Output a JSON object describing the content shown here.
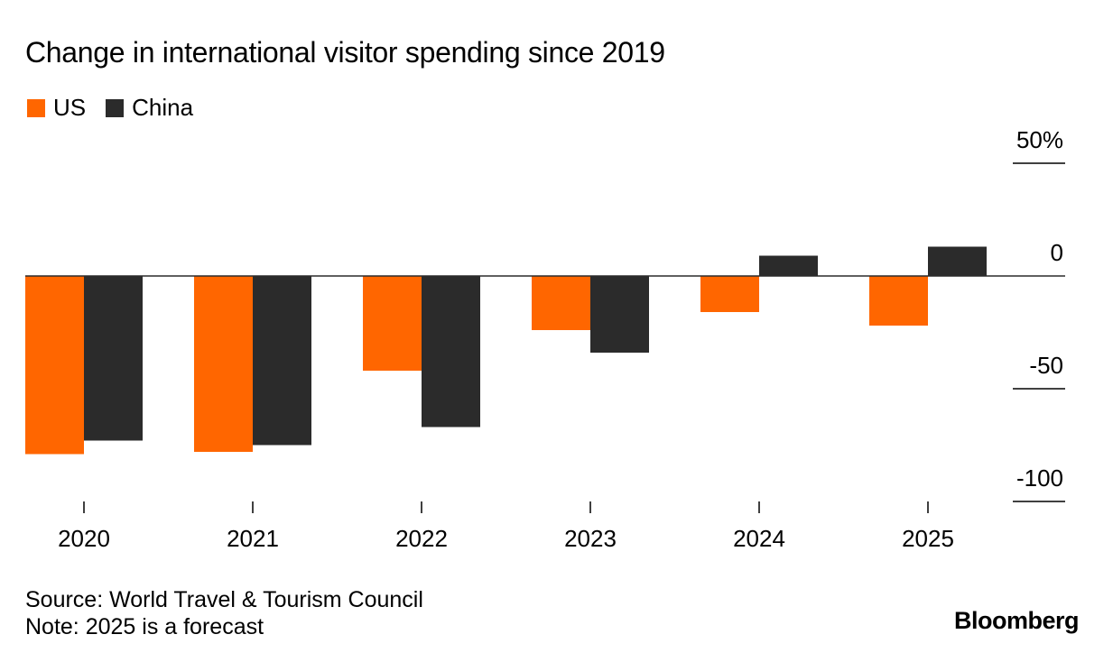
{
  "colors": {
    "us": "#ff6600",
    "china": "#2b2b2b",
    "axis": "#000000"
  },
  "footer": {
    "source": "Source: World Travel & Tourism Council",
    "note": "Note: 2025 is a forecast",
    "brand": "Bloomberg"
  },
  "chart_data": {
    "type": "bar",
    "title": "Change in international visitor spending since 2019",
    "xlabel": "",
    "ylabel": "",
    "categories": [
      "2020",
      "2021",
      "2022",
      "2023",
      "2024",
      "2025"
    ],
    "series": [
      {
        "name": "US",
        "color": "#ff6600",
        "values": [
          -79,
          -78,
          -42,
          -24,
          -16,
          -22
        ]
      },
      {
        "name": "China",
        "color": "#2b2b2b",
        "values": [
          -73,
          -75,
          -67,
          -34,
          9,
          13
        ]
      }
    ],
    "ylim": [
      -100,
      50
    ],
    "yticks": [
      50,
      0,
      -50,
      -100
    ],
    "ytick_labels": [
      "50%",
      "0",
      "-50",
      "-100"
    ],
    "y_axis_side": "right",
    "legend_position": "top-left",
    "grid": false
  }
}
